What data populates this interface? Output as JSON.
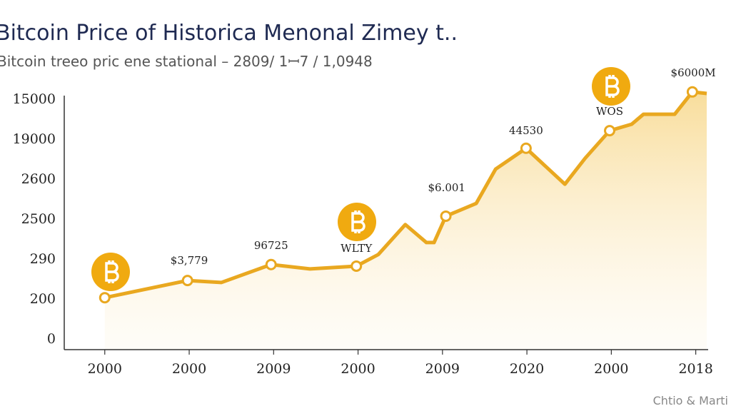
{
  "chart_data": {
    "type": "line",
    "title": "Bitcoin Price of Historica Menonal Zimey t..",
    "subtitle": "Bitcoin treeo pric ene stational – 2809/ 1ꟷ7 / 1,0948",
    "source": "Chtio & Marti",
    "color": "#e9a820",
    "x": [
      0,
      0.98,
      1.38,
      1.97,
      2.43,
      2.98,
      3.24,
      3.56,
      3.81,
      3.9,
      4.04,
      4.4,
      4.63,
      4.99,
      5.45,
      5.69,
      5.98,
      6.24,
      6.38,
      6.75,
      6.96,
      7.13
    ],
    "values": [
      1.05,
      1.48,
      1.43,
      1.88,
      1.77,
      1.84,
      2.13,
      2.88,
      2.43,
      2.43,
      3.09,
      3.41,
      4.27,
      4.79,
      3.89,
      4.54,
      5.23,
      5.39,
      5.64,
      5.64,
      6.2,
      6.16
    ],
    "markers": {
      "x": [
        0,
        0.98,
        1.97,
        2.98,
        4.04,
        4.99,
        5.98,
        6.96
      ],
      "y": [
        1.05,
        1.48,
        1.88,
        1.84,
        3.09,
        4.79,
        5.23,
        6.2
      ]
    },
    "annotations": [
      {
        "text": "$3,779",
        "x": 1.0,
        "y": 1.96
      },
      {
        "text": "96725",
        "x": 1.97,
        "y": 2.34
      },
      {
        "text": "WLTY",
        "x": 2.98,
        "y": 2.27
      },
      {
        "text": "$6.001",
        "x": 4.05,
        "y": 3.79
      },
      {
        "text": "44530",
        "x": 4.99,
        "y": 5.21
      },
      {
        "text": "WOS",
        "x": 5.98,
        "y": 5.7
      },
      {
        "text": "$6000M",
        "x": 6.97,
        "y": 6.66
      }
    ],
    "xlim": [
      -0.48,
      7.13
    ],
    "xticks": [
      {
        "value": 0,
        "label": "2000"
      },
      {
        "value": 1,
        "label": "2000"
      },
      {
        "value": 2,
        "label": "2009"
      },
      {
        "value": 3,
        "label": "2000"
      },
      {
        "value": 4,
        "label": "2009"
      },
      {
        "value": 5,
        "label": "2020"
      },
      {
        "value": 6,
        "label": "2000"
      },
      {
        "value": 7,
        "label": "2018"
      }
    ],
    "ylim": [
      -0.25,
      6.25
    ],
    "yticks": [
      0,
      {
        "value": 1,
        "label": "200"
      },
      {
        "value": 2,
        "label": "290"
      },
      {
        "value": 3,
        "label": "2500"
      },
      {
        "value": 4,
        "label": "2600"
      },
      {
        "value": 5,
        "label": "19000"
      },
      {
        "value": 6,
        "label": "15000"
      }
    ]
  }
}
